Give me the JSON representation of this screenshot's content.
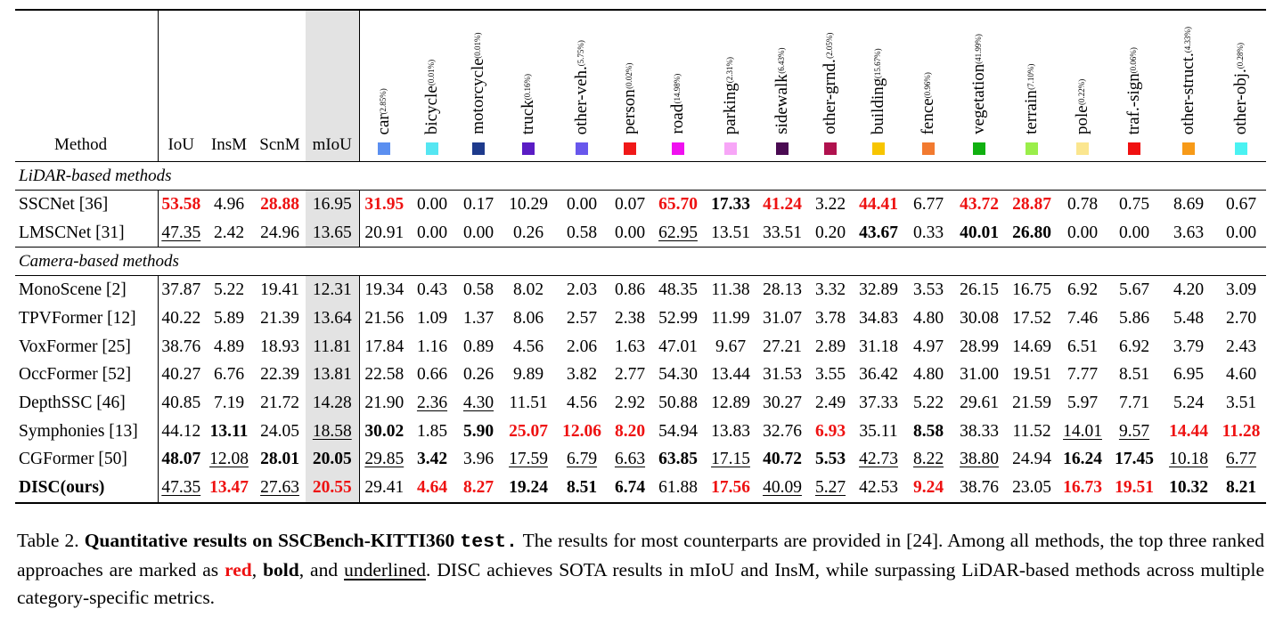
{
  "header": {
    "method": "Method",
    "metrics": [
      "IoU",
      "InsM",
      "ScnM",
      "mIoU"
    ],
    "classes": [
      {
        "name": "car",
        "pct": "(2.85%)",
        "color": "#5b8ff0"
      },
      {
        "name": "bicycle",
        "pct": "(0.01%)",
        "color": "#55e6f2"
      },
      {
        "name": "motorcycle",
        "pct": "(0.01%)",
        "color": "#1e3a8c"
      },
      {
        "name": "truck",
        "pct": "(0.16%)",
        "color": "#5a1cc4"
      },
      {
        "name": "other-veh.",
        "pct": "(5.75%)",
        "color": "#6857ec"
      },
      {
        "name": "person",
        "pct": "(0.02%)",
        "color": "#f01818"
      },
      {
        "name": "road",
        "pct": "(14.98%)",
        "color": "#f010f0"
      },
      {
        "name": "parking",
        "pct": "(2.31%)",
        "color": "#f7a6f7"
      },
      {
        "name": "sidewalk",
        "pct": "(6.43%)",
        "color": "#4a0a52"
      },
      {
        "name": "other-grnd.",
        "pct": "(2.05%)",
        "color": "#b0124e"
      },
      {
        "name": "building",
        "pct": "(15.67%)",
        "color": "#f7c500"
      },
      {
        "name": "fence",
        "pct": "(0.96%)",
        "color": "#f27a30"
      },
      {
        "name": "vegetation",
        "pct": "(41.99%)",
        "color": "#10b010"
      },
      {
        "name": "terrain",
        "pct": "(7.10%)",
        "color": "#9aee4a"
      },
      {
        "name": "pole",
        "pct": "(0.22%)",
        "color": "#fbe68f"
      },
      {
        "name": "traf.-sign",
        "pct": "(0.06%)",
        "color": "#f01010"
      },
      {
        "name": "other-struct.",
        "pct": "(4.33%)",
        "color": "#f79a18"
      },
      {
        "name": "other-obj.",
        "pct": "(0.28%)",
        "color": "#4af2f2"
      }
    ]
  },
  "sections": [
    {
      "title": "LiDAR-based methods",
      "rows": [
        {
          "method": "SSCNet [36]",
          "cells": [
            [
              "53.58",
              "r"
            ],
            [
              "4.96",
              ""
            ],
            [
              "28.88",
              "r"
            ],
            [
              "16.95",
              ""
            ],
            [
              "31.95",
              "r"
            ],
            [
              "0.00",
              ""
            ],
            [
              "0.17",
              ""
            ],
            [
              "10.29",
              ""
            ],
            [
              "0.00",
              ""
            ],
            [
              "0.07",
              ""
            ],
            [
              "65.70",
              "r"
            ],
            [
              "17.33",
              "b"
            ],
            [
              "41.24",
              "r"
            ],
            [
              "3.22",
              ""
            ],
            [
              "44.41",
              "r"
            ],
            [
              "6.77",
              ""
            ],
            [
              "43.72",
              "r"
            ],
            [
              "28.87",
              "r"
            ],
            [
              "0.78",
              ""
            ],
            [
              "0.75",
              ""
            ],
            [
              "8.69",
              ""
            ],
            [
              "0.67",
              ""
            ]
          ]
        },
        {
          "method": "LMSCNet [31]",
          "cells": [
            [
              "47.35",
              "u"
            ],
            [
              "2.42",
              ""
            ],
            [
              "24.96",
              ""
            ],
            [
              "13.65",
              ""
            ],
            [
              "20.91",
              ""
            ],
            [
              "0.00",
              ""
            ],
            [
              "0.00",
              ""
            ],
            [
              "0.26",
              ""
            ],
            [
              "0.58",
              ""
            ],
            [
              "0.00",
              ""
            ],
            [
              "62.95",
              "u"
            ],
            [
              "13.51",
              ""
            ],
            [
              "33.51",
              ""
            ],
            [
              "0.20",
              ""
            ],
            [
              "43.67",
              "b"
            ],
            [
              "0.33",
              ""
            ],
            [
              "40.01",
              "b"
            ],
            [
              "26.80",
              "b"
            ],
            [
              "0.00",
              ""
            ],
            [
              "0.00",
              ""
            ],
            [
              "3.63",
              ""
            ],
            [
              "0.00",
              ""
            ]
          ]
        }
      ]
    },
    {
      "title": "Camera-based methods",
      "rows": [
        {
          "method": "MonoScene [2]",
          "cells": [
            [
              "37.87",
              ""
            ],
            [
              "5.22",
              ""
            ],
            [
              "19.41",
              ""
            ],
            [
              "12.31",
              ""
            ],
            [
              "19.34",
              ""
            ],
            [
              "0.43",
              ""
            ],
            [
              "0.58",
              ""
            ],
            [
              "8.02",
              ""
            ],
            [
              "2.03",
              ""
            ],
            [
              "0.86",
              ""
            ],
            [
              "48.35",
              ""
            ],
            [
              "11.38",
              ""
            ],
            [
              "28.13",
              ""
            ],
            [
              "3.32",
              ""
            ],
            [
              "32.89",
              ""
            ],
            [
              "3.53",
              ""
            ],
            [
              "26.15",
              ""
            ],
            [
              "16.75",
              ""
            ],
            [
              "6.92",
              ""
            ],
            [
              "5.67",
              ""
            ],
            [
              "4.20",
              ""
            ],
            [
              "3.09",
              ""
            ]
          ]
        },
        {
          "method": "TPVFormer [12]",
          "cells": [
            [
              "40.22",
              ""
            ],
            [
              "5.89",
              ""
            ],
            [
              "21.39",
              ""
            ],
            [
              "13.64",
              ""
            ],
            [
              "21.56",
              ""
            ],
            [
              "1.09",
              ""
            ],
            [
              "1.37",
              ""
            ],
            [
              "8.06",
              ""
            ],
            [
              "2.57",
              ""
            ],
            [
              "2.38",
              ""
            ],
            [
              "52.99",
              ""
            ],
            [
              "11.99",
              ""
            ],
            [
              "31.07",
              ""
            ],
            [
              "3.78",
              ""
            ],
            [
              "34.83",
              ""
            ],
            [
              "4.80",
              ""
            ],
            [
              "30.08",
              ""
            ],
            [
              "17.52",
              ""
            ],
            [
              "7.46",
              ""
            ],
            [
              "5.86",
              ""
            ],
            [
              "5.48",
              ""
            ],
            [
              "2.70",
              ""
            ]
          ]
        },
        {
          "method": "VoxFormer [25]",
          "cells": [
            [
              "38.76",
              ""
            ],
            [
              "4.89",
              ""
            ],
            [
              "18.93",
              ""
            ],
            [
              "11.81",
              ""
            ],
            [
              "17.84",
              ""
            ],
            [
              "1.16",
              ""
            ],
            [
              "0.89",
              ""
            ],
            [
              "4.56",
              ""
            ],
            [
              "2.06",
              ""
            ],
            [
              "1.63",
              ""
            ],
            [
              "47.01",
              ""
            ],
            [
              "9.67",
              ""
            ],
            [
              "27.21",
              ""
            ],
            [
              "2.89",
              ""
            ],
            [
              "31.18",
              ""
            ],
            [
              "4.97",
              ""
            ],
            [
              "28.99",
              ""
            ],
            [
              "14.69",
              ""
            ],
            [
              "6.51",
              ""
            ],
            [
              "6.92",
              ""
            ],
            [
              "3.79",
              ""
            ],
            [
              "2.43",
              ""
            ]
          ]
        },
        {
          "method": "OccFormer [52]",
          "cells": [
            [
              "40.27",
              ""
            ],
            [
              "6.76",
              ""
            ],
            [
              "22.39",
              ""
            ],
            [
              "13.81",
              ""
            ],
            [
              "22.58",
              ""
            ],
            [
              "0.66",
              ""
            ],
            [
              "0.26",
              ""
            ],
            [
              "9.89",
              ""
            ],
            [
              "3.82",
              ""
            ],
            [
              "2.77",
              ""
            ],
            [
              "54.30",
              ""
            ],
            [
              "13.44",
              ""
            ],
            [
              "31.53",
              ""
            ],
            [
              "3.55",
              ""
            ],
            [
              "36.42",
              ""
            ],
            [
              "4.80",
              ""
            ],
            [
              "31.00",
              ""
            ],
            [
              "19.51",
              ""
            ],
            [
              "7.77",
              ""
            ],
            [
              "8.51",
              ""
            ],
            [
              "6.95",
              ""
            ],
            [
              "4.60",
              ""
            ]
          ]
        },
        {
          "method": "DepthSSC [46]",
          "cells": [
            [
              "40.85",
              ""
            ],
            [
              "7.19",
              ""
            ],
            [
              "21.72",
              ""
            ],
            [
              "14.28",
              ""
            ],
            [
              "21.90",
              ""
            ],
            [
              "2.36",
              "u"
            ],
            [
              "4.30",
              "u"
            ],
            [
              "11.51",
              ""
            ],
            [
              "4.56",
              ""
            ],
            [
              "2.92",
              ""
            ],
            [
              "50.88",
              ""
            ],
            [
              "12.89",
              ""
            ],
            [
              "30.27",
              ""
            ],
            [
              "2.49",
              ""
            ],
            [
              "37.33",
              ""
            ],
            [
              "5.22",
              ""
            ],
            [
              "29.61",
              ""
            ],
            [
              "21.59",
              ""
            ],
            [
              "5.97",
              ""
            ],
            [
              "7.71",
              ""
            ],
            [
              "5.24",
              ""
            ],
            [
              "3.51",
              ""
            ]
          ]
        },
        {
          "method": "Symphonies [13]",
          "cells": [
            [
              "44.12",
              ""
            ],
            [
              "13.11",
              "b"
            ],
            [
              "24.05",
              ""
            ],
            [
              "18.58",
              "u"
            ],
            [
              "30.02",
              "b"
            ],
            [
              "1.85",
              ""
            ],
            [
              "5.90",
              "b"
            ],
            [
              "25.07",
              "r"
            ],
            [
              "12.06",
              "r"
            ],
            [
              "8.20",
              "r"
            ],
            [
              "54.94",
              ""
            ],
            [
              "13.83",
              ""
            ],
            [
              "32.76",
              ""
            ],
            [
              "6.93",
              "r"
            ],
            [
              "35.11",
              ""
            ],
            [
              "8.58",
              "b"
            ],
            [
              "38.33",
              ""
            ],
            [
              "11.52",
              ""
            ],
            [
              "14.01",
              "u"
            ],
            [
              "9.57",
              "u"
            ],
            [
              "14.44",
              "r"
            ],
            [
              "11.28",
              "r"
            ]
          ]
        },
        {
          "method": "CGFormer [50]",
          "cells": [
            [
              "48.07",
              "b"
            ],
            [
              "12.08",
              "u"
            ],
            [
              "28.01",
              "b"
            ],
            [
              "20.05",
              "b"
            ],
            [
              "29.85",
              "u"
            ],
            [
              "3.42",
              "b"
            ],
            [
              "3.96",
              ""
            ],
            [
              "17.59",
              "u"
            ],
            [
              "6.79",
              "u"
            ],
            [
              "6.63",
              "u"
            ],
            [
              "63.85",
              "b"
            ],
            [
              "17.15",
              "u"
            ],
            [
              "40.72",
              "b"
            ],
            [
              "5.53",
              "b"
            ],
            [
              "42.73",
              "u"
            ],
            [
              "8.22",
              "u"
            ],
            [
              "38.80",
              "u"
            ],
            [
              "24.94",
              ""
            ],
            [
              "16.24",
              "b"
            ],
            [
              "17.45",
              "b"
            ],
            [
              "10.18",
              "u"
            ],
            [
              "6.77",
              "u"
            ]
          ]
        },
        {
          "method": "DISC(ours)",
          "bold_method": true,
          "cells": [
            [
              "47.35",
              "u"
            ],
            [
              "13.47",
              "r"
            ],
            [
              "27.63",
              "u"
            ],
            [
              "20.55",
              "r"
            ],
            [
              "29.41",
              ""
            ],
            [
              "4.64",
              "r"
            ],
            [
              "8.27",
              "r"
            ],
            [
              "19.24",
              "b"
            ],
            [
              "8.51",
              "b"
            ],
            [
              "6.74",
              "b"
            ],
            [
              "61.88",
              ""
            ],
            [
              "17.56",
              "r"
            ],
            [
              "40.09",
              "u"
            ],
            [
              "5.27",
              "u"
            ],
            [
              "42.53",
              ""
            ],
            [
              "9.24",
              "r"
            ],
            [
              "38.76",
              ""
            ],
            [
              "23.05",
              ""
            ],
            [
              "16.73",
              "r"
            ],
            [
              "19.51",
              "r"
            ],
            [
              "10.32",
              "b"
            ],
            [
              "8.21",
              "b"
            ]
          ]
        }
      ]
    }
  ],
  "caption": {
    "label": "Table 2.",
    "title_pre": "Quantitative results on SSCBench-KITTI360",
    "title_mono": "test.",
    "text1": "The results for most counterparts are provided in [24]. Among all methods, the top three ranked approaches are marked as",
    "red_word": "red",
    "sep1": ",",
    "bold_word": "bold",
    "sep2": ", and",
    "und_word": "underlined",
    "text2": ". DISC achieves SOTA results in mIoU and InsM, while surpassing LiDAR-based methods across multiple category-specific metrics."
  }
}
